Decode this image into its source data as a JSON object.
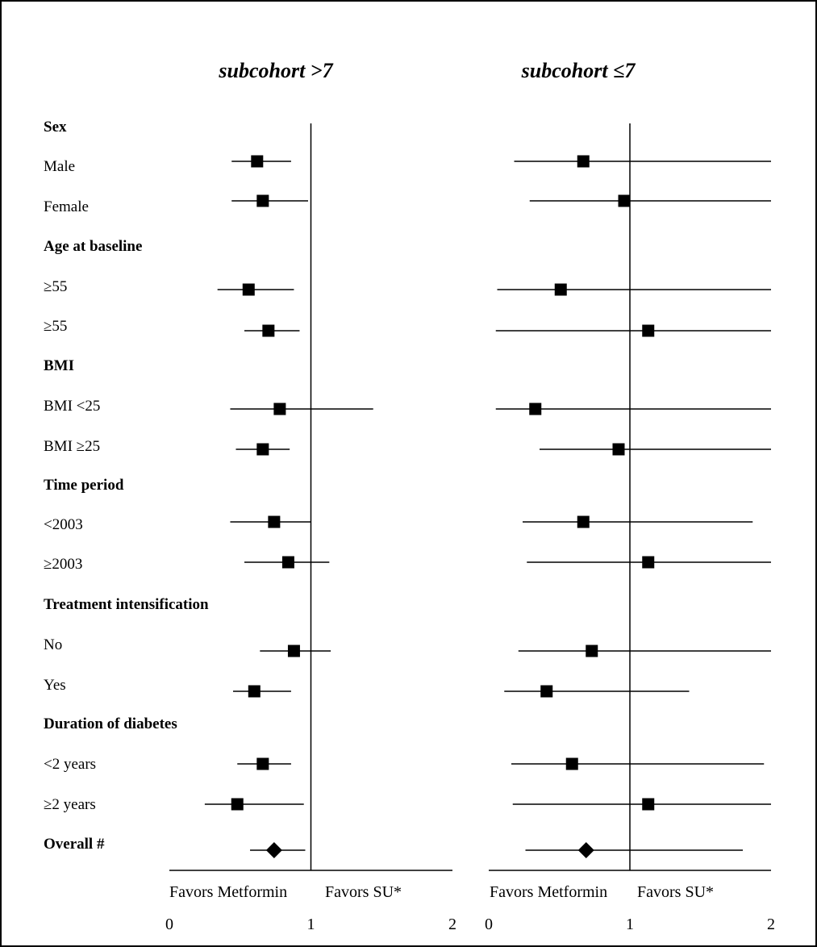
{
  "chart_data": {
    "type": "forest",
    "row_labels": [
      {
        "text": "Sex",
        "header": true
      },
      {
        "text": "Male",
        "header": false
      },
      {
        "text": "Female",
        "header": false
      },
      {
        "text": "Age at baseline",
        "header": true
      },
      {
        "text": "≥55",
        "header": false
      },
      {
        "text": "≥55",
        "header": false
      },
      {
        "text": "BMI",
        "header": true
      },
      {
        "text": "BMI <25",
        "header": false
      },
      {
        "text": "BMI ≥25",
        "header": false
      },
      {
        "text": "Time period",
        "header": true
      },
      {
        "text": "<2003",
        "header": false
      },
      {
        "text": " ≥2003",
        "header": false
      },
      {
        "text": "Treatment intensification",
        "header": true
      },
      {
        "text": "No",
        "header": false
      },
      {
        "text": "Yes",
        "header": false
      },
      {
        "text": "Duration of diabetes",
        "header": true
      },
      {
        "text": "<2 years",
        "header": false
      },
      {
        "text": "≥2 years",
        "header": false
      },
      {
        "text": "Overall #",
        "header": true
      }
    ],
    "xlim": [
      0,
      2
    ],
    "reference_line": 1,
    "x_ticks": [
      "0",
      "1",
      "2"
    ],
    "favors_left": "Favors Metformin",
    "favors_right": "Favors SU*",
    "panels": [
      {
        "title": "subcohort >7",
        "estimates": [
          {
            "row": "Male",
            "point": 0.62,
            "low": 0.44,
            "high": 0.86
          },
          {
            "row": "Female",
            "point": 0.66,
            "low": 0.44,
            "high": 0.98
          },
          {
            "row": "≥55",
            "point": 0.56,
            "low": 0.34,
            "high": 0.88
          },
          {
            "row": "≥55",
            "point": 0.7,
            "low": 0.53,
            "high": 0.92
          },
          {
            "row": "BMI <25",
            "point": 0.78,
            "low": 0.43,
            "high": 1.44
          },
          {
            "row": "BMI ≥25",
            "point": 0.66,
            "low": 0.47,
            "high": 0.85
          },
          {
            "row": "<2003",
            "point": 0.74,
            "low": 0.43,
            "high": 1.0
          },
          {
            "row": "≥2003",
            "point": 0.84,
            "low": 0.53,
            "high": 1.13
          },
          {
            "row": "No",
            "point": 0.88,
            "low": 0.64,
            "high": 1.14
          },
          {
            "row": "Yes",
            "point": 0.6,
            "low": 0.45,
            "high": 0.86
          },
          {
            "row": "<2 years",
            "point": 0.66,
            "low": 0.48,
            "high": 0.86
          },
          {
            "row": "≥2 years",
            "point": 0.48,
            "low": 0.25,
            "high": 0.95
          },
          {
            "row": "Overall #",
            "point": 0.74,
            "low": 0.57,
            "high": 0.96,
            "overall": true
          }
        ]
      },
      {
        "title": "subcohort ≤7",
        "estimates": [
          {
            "row": "Male",
            "point": 0.67,
            "low": 0.18,
            "high": 2.0
          },
          {
            "row": "Female",
            "point": 0.96,
            "low": 0.29,
            "high": 2.0
          },
          {
            "row": "≥55",
            "point": 0.51,
            "low": 0.06,
            "high": 2.0
          },
          {
            "row": "≥55",
            "point": 1.13,
            "low": 0.05,
            "high": 2.0
          },
          {
            "row": "BMI <25",
            "point": 0.33,
            "low": 0.05,
            "high": 2.0
          },
          {
            "row": "BMI ≥25",
            "point": 0.92,
            "low": 0.36,
            "high": 2.0
          },
          {
            "row": "<2003",
            "point": 0.67,
            "low": 0.24,
            "high": 1.87
          },
          {
            "row": "≥2003",
            "point": 1.13,
            "low": 0.27,
            "high": 2.0
          },
          {
            "row": "No",
            "point": 0.73,
            "low": 0.21,
            "high": 2.0
          },
          {
            "row": "Yes",
            "point": 0.41,
            "low": 0.11,
            "high": 1.42
          },
          {
            "row": "<2 years",
            "point": 0.59,
            "low": 0.16,
            "high": 1.95
          },
          {
            "row": "≥2 years",
            "point": 1.13,
            "low": 0.17,
            "high": 2.0
          },
          {
            "row": "Overall #",
            "point": 0.69,
            "low": 0.26,
            "high": 1.8,
            "overall": true
          }
        ]
      }
    ]
  }
}
